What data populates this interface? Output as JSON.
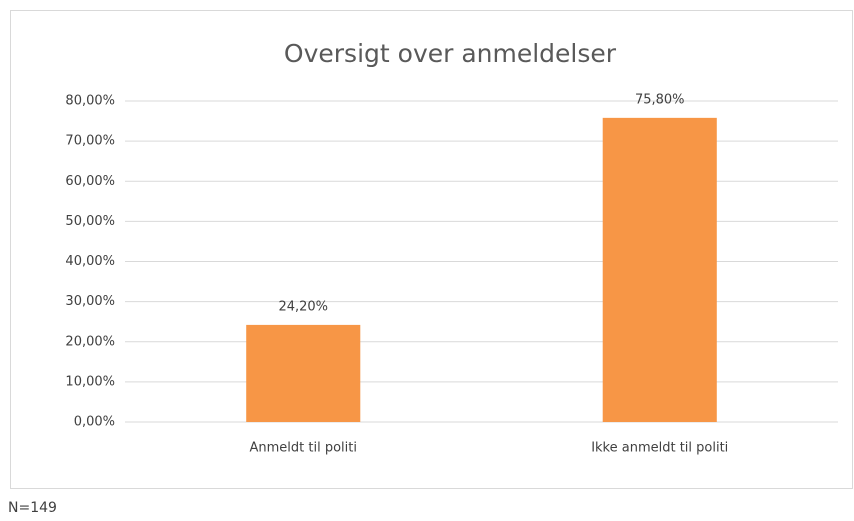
{
  "chart_data": {
    "type": "bar",
    "title": "Oversigt over anmeldelser",
    "categories": [
      "Anmeldt til politi",
      "Ikke anmeldt til politi"
    ],
    "values": [
      24.2,
      75.8
    ],
    "value_labels": [
      "24,20%",
      "75,80%"
    ],
    "color": "#f79646",
    "ylim": [
      0,
      80
    ],
    "yticks": [
      {
        "value": 0,
        "label": "0,00%"
      },
      {
        "value": 10,
        "label": "10,00%"
      },
      {
        "value": 20,
        "label": "20,00%"
      },
      {
        "value": 30,
        "label": "30,00%"
      },
      {
        "value": 40,
        "label": "40,00%"
      },
      {
        "value": 50,
        "label": "50,00%"
      },
      {
        "value": 60,
        "label": "60,00%"
      },
      {
        "value": 70,
        "label": "70,00%"
      },
      {
        "value": 80,
        "label": "80,00%"
      }
    ],
    "grid": true,
    "annotation": "N=149"
  }
}
